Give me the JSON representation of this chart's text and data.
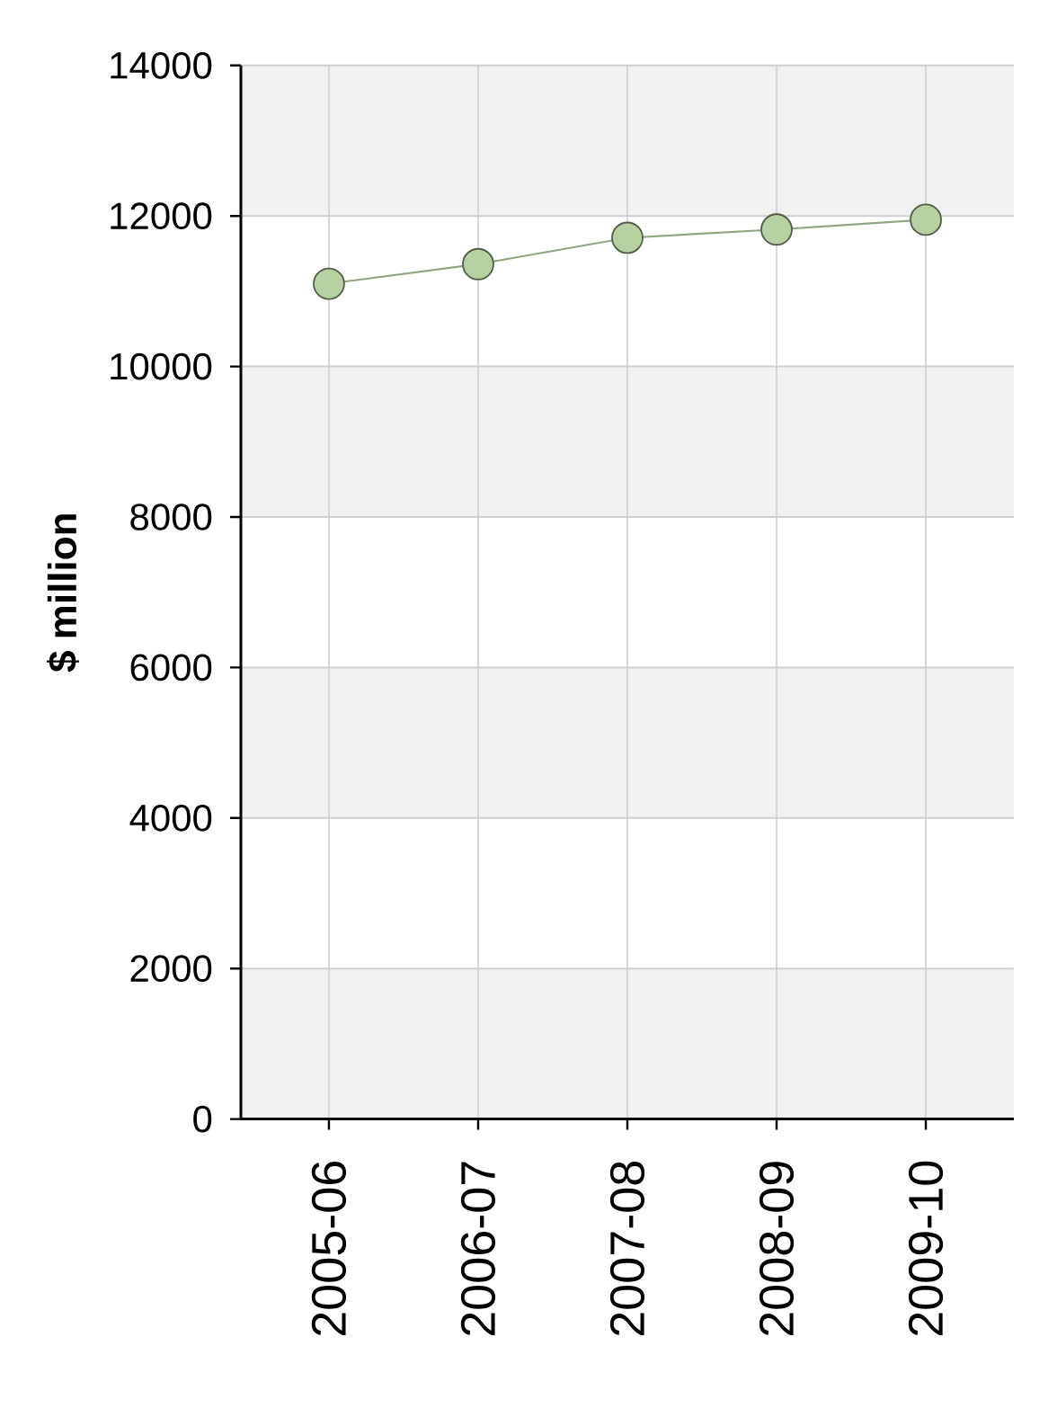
{
  "chart_data": {
    "type": "line",
    "ylabel": "$ million",
    "categories": [
      "2005-06",
      "2006-07",
      "2007-08",
      "2008-09",
      "2009-10"
    ],
    "values": [
      11100,
      11360,
      11710,
      11820,
      11950
    ],
    "color": "#b7d0a2",
    "ylim": [
      0,
      14000
    ],
    "yticks": [
      0,
      2000,
      4000,
      6000,
      8000,
      10000,
      12000,
      14000
    ],
    "grid": true,
    "marker": "circle",
    "line_style": "solid"
  }
}
